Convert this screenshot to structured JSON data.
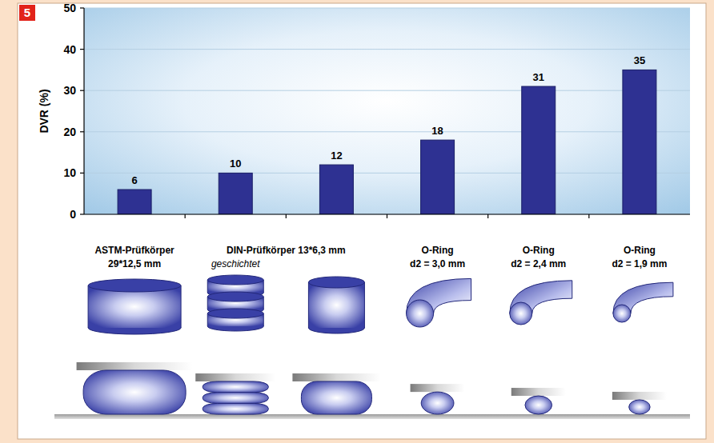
{
  "figure_label": "5",
  "chart_data": {
    "type": "bar",
    "y_label": "DVR (%)",
    "categories": [
      "ASTM-Prüfkörper 29*12,5 mm",
      null,
      null,
      "O-Ring d2 = 3,0 mm",
      "O-Ring d2 = 2,4 mm",
      "O-Ring d2 = 1,9 mm"
    ],
    "values": [
      6,
      10,
      12,
      18,
      31,
      35
    ],
    "color": "#2e3192",
    "ylim": [
      0,
      50
    ],
    "yticks": [
      0,
      10,
      20,
      30,
      40,
      50
    ],
    "grid": true,
    "data_labels": true,
    "annotations": [
      {
        "text": "DIN-Prüfkörper 13*6,3 mm"
      },
      {
        "text": "geschichtet"
      }
    ]
  }
}
